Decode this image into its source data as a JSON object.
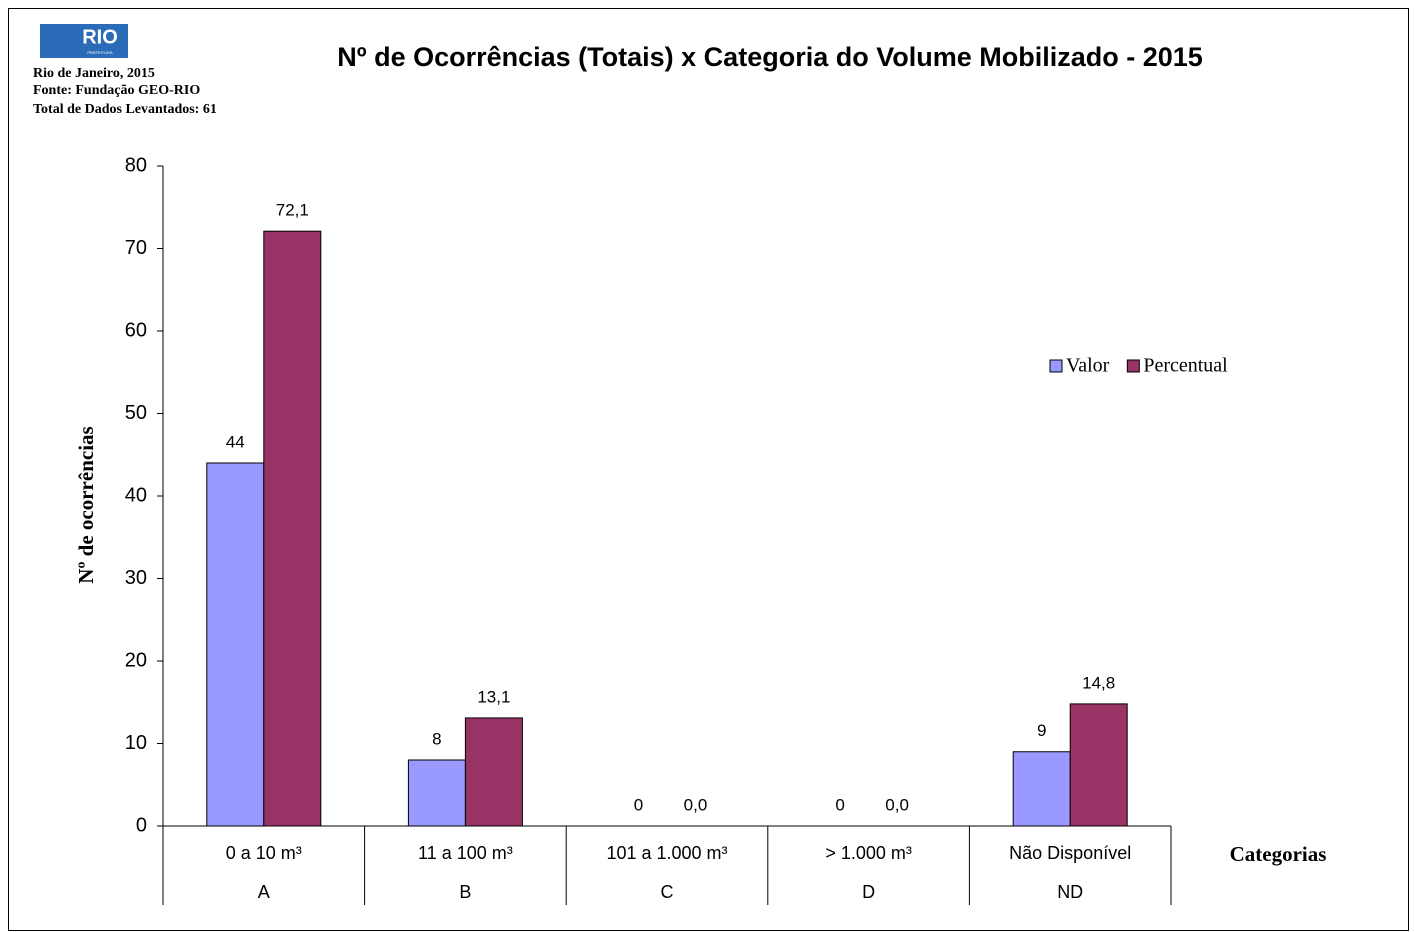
{
  "chart_data": {
    "type": "bar",
    "logo": {
      "name": "RIO",
      "subtitle": "PREFEITURA"
    },
    "title": "Nº de Ocorrências (Totais) x Categoria do Volume Mobilizado - 2015",
    "notes": [
      "Rio de Janeiro, 2015",
      "Fonte: Fundação GEO-RIO",
      "Total de Dados Levantados: 61"
    ],
    "ylabel": "Nº de ocorrências",
    "xlabel": "Categorias",
    "categories": [
      "0 a 10 m³",
      "11 a 100 m³",
      "101 a 1.000 m³",
      "> 1.000 m³",
      "Não Disponível"
    ],
    "subcategories": [
      "A",
      "B",
      "C",
      "D",
      "ND"
    ],
    "series": [
      {
        "name": "Valor",
        "color": "#9999ff",
        "values": [
          44,
          8,
          0,
          0,
          9
        ]
      },
      {
        "name": "Percentual",
        "color": "#993366",
        "values": [
          72.1,
          13.1,
          0,
          0,
          14.8
        ],
        "value_labels": [
          "72,1",
          "13,1",
          "0,0",
          "0,0",
          "14,8"
        ]
      }
    ],
    "ylim": [
      0,
      80
    ],
    "yticks": [
      0,
      10,
      20,
      30,
      40,
      50,
      60,
      70,
      80
    ],
    "legend": "right"
  }
}
